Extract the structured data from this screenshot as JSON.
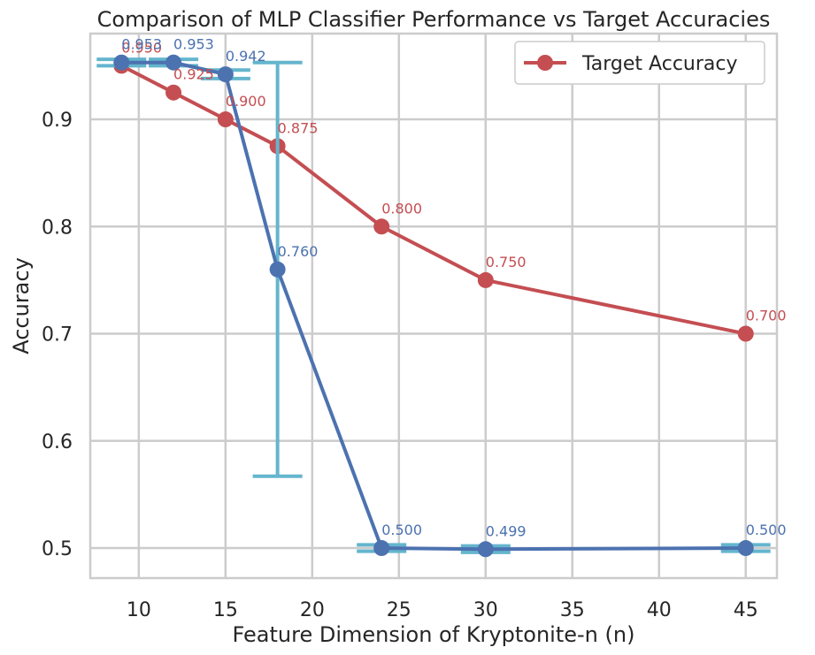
{
  "chart_data": {
    "type": "line",
    "title": "Comparison of MLP Classifier Performance vs Target Accuracies",
    "xlabel": "Feature Dimension of Kryptonite-n (n)",
    "ylabel": "Accuracy",
    "xlim": [
      7.2,
      46.8
    ],
    "ylim": [
      0.472,
      0.98
    ],
    "xticks": [
      "10",
      "15",
      "20",
      "25",
      "30",
      "35",
      "40",
      "45"
    ],
    "yticks": [
      "0.5",
      "0.6",
      "0.7",
      "0.8",
      "0.9"
    ],
    "grid": true,
    "legend_position": "top-right",
    "colors": {
      "target": "#c44e52",
      "mlp": "#4c72b0",
      "errorbar": "#64b5cd"
    },
    "series": [
      {
        "name": "Target Accuracy",
        "key": "target",
        "x": [
          9,
          12,
          15,
          18,
          24,
          30,
          45
        ],
        "y": [
          0.95,
          0.925,
          0.9,
          0.875,
          0.8,
          0.75,
          0.7
        ],
        "labels": [
          "0.950",
          "0.925",
          "0.900",
          "0.875",
          "0.800",
          "0.750",
          "0.700"
        ]
      },
      {
        "key": "mlp",
        "x": [
          9,
          12,
          15,
          18,
          24,
          30,
          45
        ],
        "y": [
          0.953,
          0.953,
          0.942,
          0.76,
          0.5,
          0.499,
          0.5
        ],
        "err": [
          0.003,
          0.003,
          0.004,
          0.193,
          0.003,
          0.003,
          0.003
        ],
        "labels": [
          "0.953",
          "0.953",
          "0.942",
          "0.760",
          "0.500",
          "0.499",
          "0.500"
        ]
      }
    ]
  }
}
